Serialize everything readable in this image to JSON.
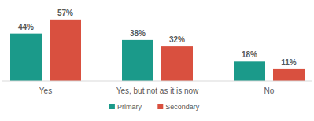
{
  "chart_data": {
    "type": "bar",
    "categories": [
      "Yes",
      "Yes, but not as it is now",
      "No"
    ],
    "series": [
      {
        "name": "Primary",
        "color": "#1b9a8a",
        "values": [
          44,
          38,
          18
        ],
        "value_labels": [
          "44%",
          "38%",
          "18%"
        ]
      },
      {
        "name": "Secondary",
        "color": "#d9503f",
        "values": [
          57,
          32,
          11
        ],
        "value_labels": [
          "57%",
          "32%",
          "11%"
        ]
      }
    ],
    "ylim": [
      0,
      70
    ],
    "data_labels": true,
    "tick_labels": "x",
    "legend": "bottom",
    "grid": false
  }
}
